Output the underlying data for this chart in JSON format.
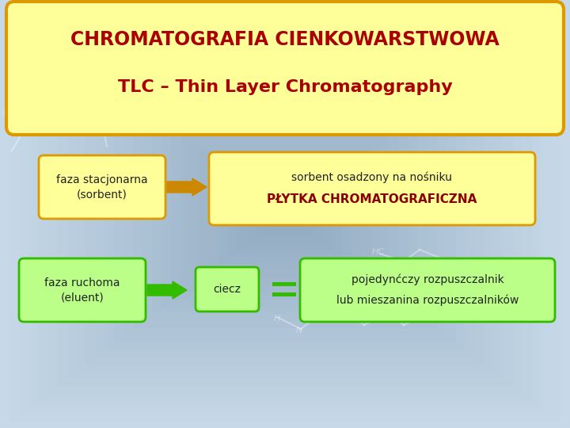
{
  "title1": "CHROMATOGRAFIA CIENKOWARSTWOWA",
  "title2": "TLC – Thin Layer Chromatography",
  "title_color": "#aa0000",
  "title_bg": "#ffff99",
  "title_border": "#dd9900",
  "bg_color_edge": "#8fa8c0",
  "bg_color_center": "#c8d8e8",
  "box1_text": "faza stacjonarna\n(sorbent)",
  "box2_text1": "sorbent osadzony na nośniku",
  "box2_text2": "PŁYTKA CHROMATOGRAFICZNA",
  "box3_text": "faza ruchoma\n(eluent)",
  "box4_text": "ciecz",
  "box5_text1": "pojedynćczy rozpuszczalnik",
  "box5_text2": "lub mieszanina rozpuszczalników",
  "yellow_box_bg": "#ffff99",
  "yellow_box_border": "#dd9900",
  "green_box_bg": "#bbff88",
  "green_box_border": "#33bb00",
  "orange_arrow_color": "#cc8800",
  "green_arrow_color": "#33bb00",
  "text_dark": "#222222",
  "red_text": "#880000"
}
